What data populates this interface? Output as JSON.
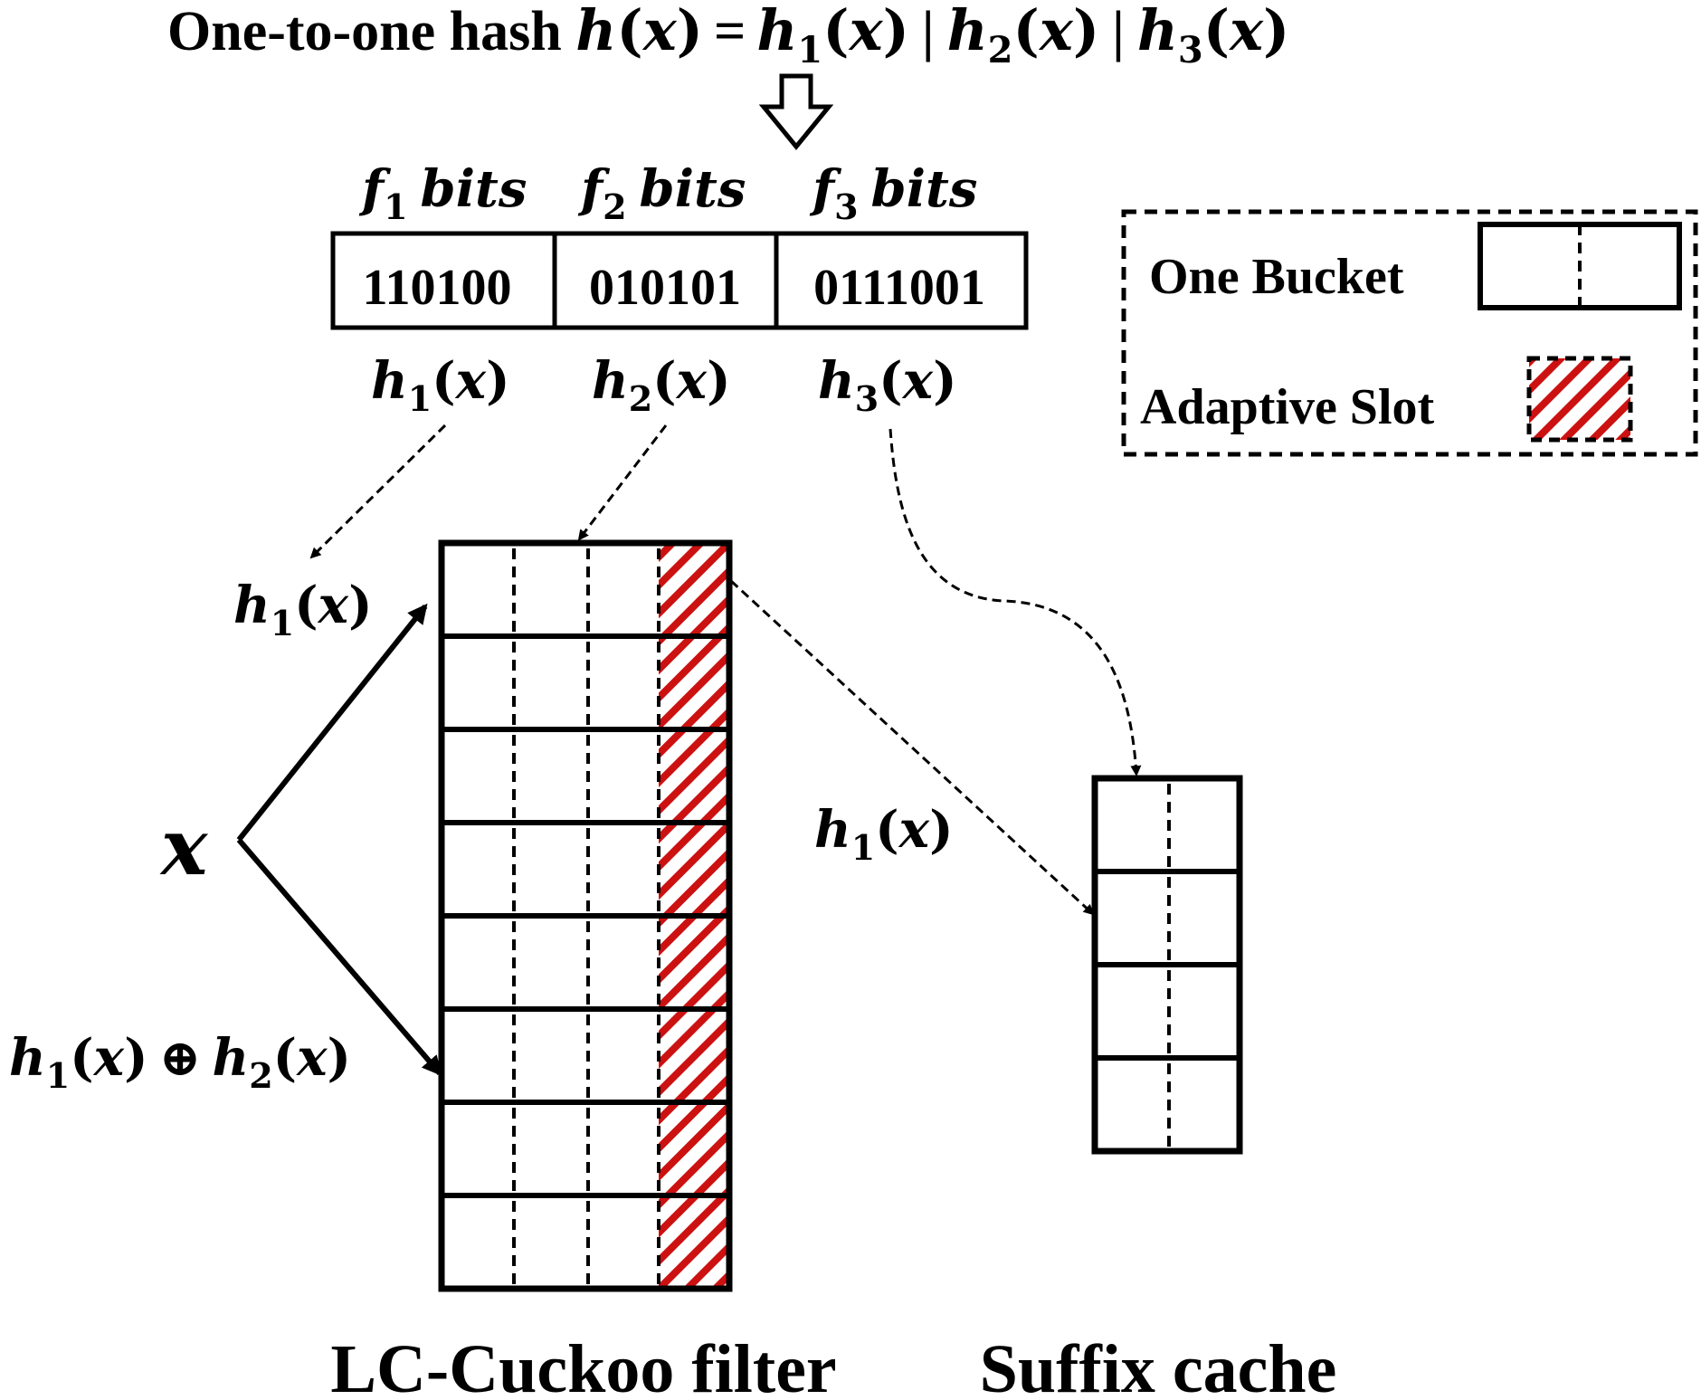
{
  "title": {
    "prefix": "One-to-one hash ",
    "formula": {
      "h": "h",
      "x": "x",
      "h1_sub": "1",
      "h2_sub": "2",
      "h3_sub": "3",
      "eq": "=",
      "sep": "|"
    }
  },
  "fields": [
    {
      "f": "f",
      "sub": "1",
      "bits": "bits",
      "value": "110100",
      "hash": "h",
      "hash_sub": "1",
      "arg": "x"
    },
    {
      "f": "f",
      "sub": "2",
      "bits": "bits",
      "value": "010101",
      "hash": "h",
      "hash_sub": "2",
      "arg": "x"
    },
    {
      "f": "f",
      "sub": "3",
      "bits": "bits",
      "value": "0111001",
      "hash": "h",
      "hash_sub": "3",
      "arg": "x"
    }
  ],
  "legend": {
    "bucket_label": "One Bucket",
    "slot_label": "Adaptive Slot"
  },
  "filter": {
    "buckets": 8,
    "slots_per_bucket": 4,
    "label": "LC-Cuckoo filter",
    "input_label": "x",
    "h1_label": {
      "h": "h",
      "sub": "1",
      "x": "x"
    },
    "alt_label": {
      "h1": "h",
      "sub1": "1",
      "x": "x",
      "xor": "⊕",
      "h2": "h",
      "sub2": "2"
    }
  },
  "cache": {
    "buckets": 4,
    "slots_per_bucket": 2,
    "label": "Suffix cache",
    "h1_label": {
      "h": "h",
      "sub": "1",
      "x": "x"
    }
  },
  "colors": {
    "hatch": "#cc1111",
    "line": "#000000"
  }
}
